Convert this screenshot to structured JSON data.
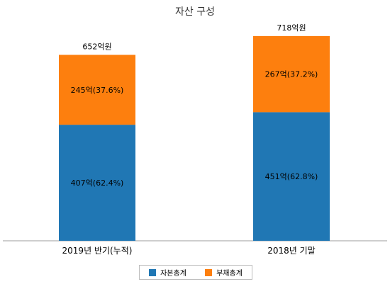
{
  "chart_data": {
    "type": "bar",
    "stacked": true,
    "title": "자산 구성",
    "categories": [
      "2019년 반기(누적)",
      "2018년 기말"
    ],
    "totals": [
      652,
      718
    ],
    "total_labels": [
      "652억원",
      "718억원"
    ],
    "series": [
      {
        "name": "자본총계",
        "values": [
          407,
          451
        ],
        "labels": [
          "407억(62.4%)",
          "451억(62.8%)"
        ],
        "color": "#2077b4"
      },
      {
        "name": "부채총계",
        "values": [
          245,
          267
        ],
        "labels": [
          "245억(37.6%)",
          "267억(37.2%)"
        ],
        "color": "#fd7f0e"
      }
    ],
    "ylim": [
      0,
      750
    ],
    "grid": false,
    "legend_position": "bottom"
  }
}
